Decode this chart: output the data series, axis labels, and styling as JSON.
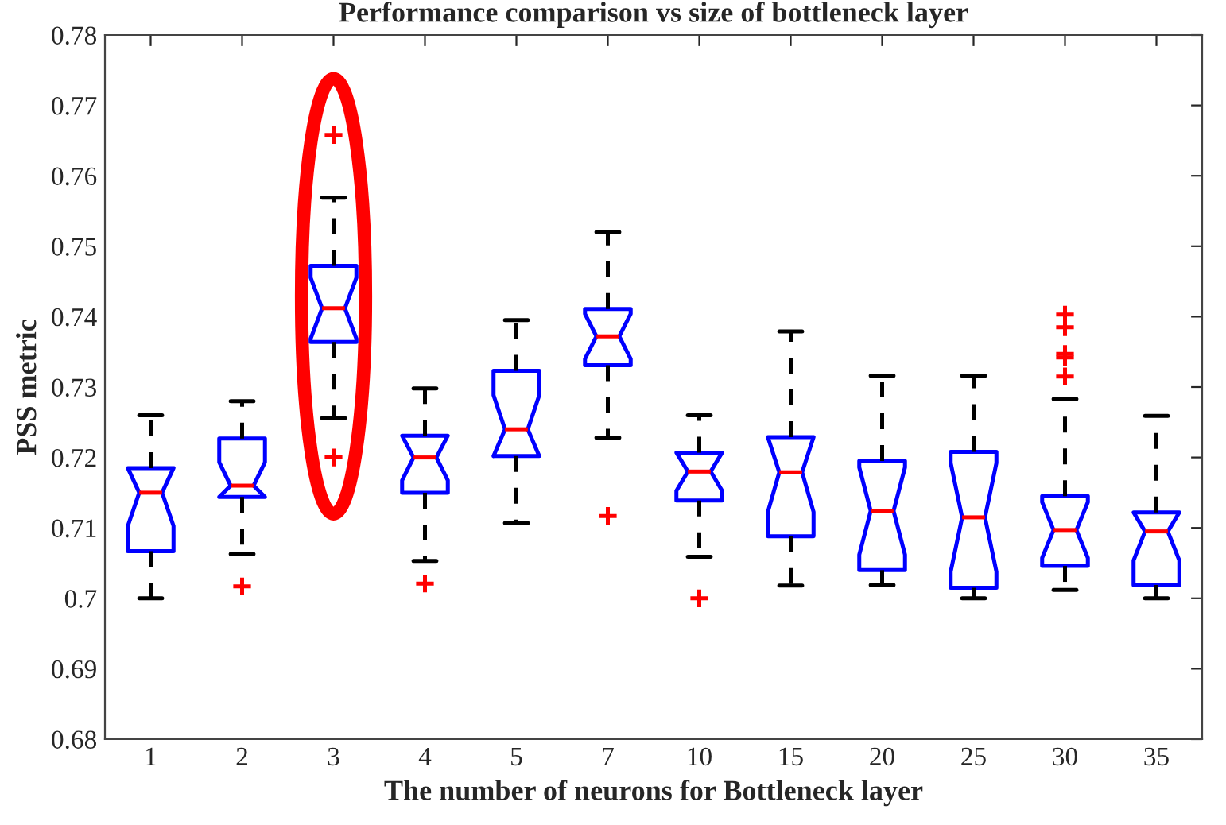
{
  "chart_data": {
    "type": "box",
    "title": "Performance comparison vs size of bottleneck layer",
    "xlabel": "The number of neurons for Bottleneck layer",
    "ylabel": "PSS metric",
    "categories": [
      "1",
      "2",
      "3",
      "4",
      "5",
      "7",
      "10",
      "15",
      "20",
      "25",
      "30",
      "35"
    ],
    "boxes": [
      {
        "low": 0.7,
        "q1": 0.7067,
        "median": 0.715,
        "q3": 0.7185,
        "high": 0.726
      },
      {
        "low": 0.7063,
        "q1": 0.7144,
        "median": 0.716,
        "q3": 0.7227,
        "high": 0.728,
        "outliers": [
          0.7017
        ]
      },
      {
        "low": 0.7256,
        "q1": 0.7364,
        "median": 0.7412,
        "q3": 0.7472,
        "high": 0.7569,
        "outliers": [
          0.7658,
          0.72
        ]
      },
      {
        "low": 0.7053,
        "q1": 0.715,
        "median": 0.72,
        "q3": 0.7231,
        "high": 0.7298,
        "outliers": [
          0.7021
        ]
      },
      {
        "low": 0.7107,
        "q1": 0.7202,
        "median": 0.724,
        "q3": 0.7323,
        "high": 0.7395
      },
      {
        "low": 0.7228,
        "q1": 0.7331,
        "median": 0.7372,
        "q3": 0.7411,
        "high": 0.752,
        "outliers": [
          0.7117
        ]
      },
      {
        "low": 0.7059,
        "q1": 0.7139,
        "median": 0.718,
        "q3": 0.7207,
        "high": 0.726,
        "outliers": [
          0.7
        ]
      },
      {
        "low": 0.7018,
        "q1": 0.7088,
        "median": 0.7179,
        "q3": 0.7229,
        "high": 0.7379
      },
      {
        "low": 0.7019,
        "q1": 0.704,
        "median": 0.7124,
        "q3": 0.7195,
        "high": 0.7316
      },
      {
        "low": 0.7,
        "q1": 0.7015,
        "median": 0.7115,
        "q3": 0.7208,
        "high": 0.7316
      },
      {
        "low": 0.7012,
        "q1": 0.7046,
        "median": 0.7097,
        "q3": 0.7145,
        "high": 0.7283,
        "outliers": [
          0.7403,
          0.7385,
          0.7347,
          0.7342,
          0.7315
        ]
      },
      {
        "low": 0.7,
        "q1": 0.7019,
        "median": 0.7095,
        "q3": 0.7122,
        "high": 0.7259
      }
    ],
    "color": "#0000ff",
    "ylim": [
      0.68,
      0.78
    ],
    "yticks": [
      0.68,
      0.69,
      0.7,
      0.71,
      0.72,
      0.73,
      0.74,
      0.75,
      0.76,
      0.77,
      0.78
    ],
    "grid": false
  }
}
